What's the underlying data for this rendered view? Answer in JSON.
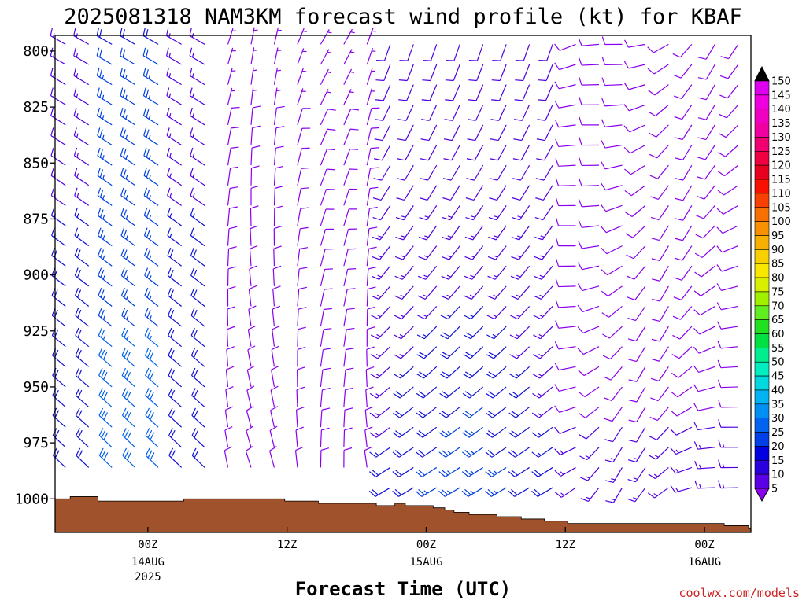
{
  "chart_data": {
    "type": "wind-barb-profile",
    "title": "2025081318 NAM3KM forecast wind profile (kt) for KBAF",
    "xlabel": "Forecast Time (UTC)",
    "credit": "coolwx.com/models",
    "y_axis": {
      "reversed": true,
      "range": [
        1015,
        793
      ],
      "ticks": [
        "800",
        "825",
        "850",
        "875",
        "900",
        "925",
        "950",
        "975",
        "1000"
      ]
    },
    "x_axis": {
      "range_hours": [
        -4,
        26
      ],
      "ticks": [
        {
          "hour": 0,
          "label": "00Z",
          "sub1": "14AUG",
          "sub2": "2025"
        },
        {
          "hour": 6,
          "label": "12Z",
          "sub1": "",
          "sub2": ""
        },
        {
          "hour": 12,
          "label": "00Z",
          "sub1": "15AUG",
          "sub2": ""
        },
        {
          "hour": 18,
          "label": "12Z",
          "sub1": "",
          "sub2": ""
        },
        {
          "hour": 24,
          "label": "00Z",
          "sub1": "16AUG",
          "sub2": ""
        }
      ]
    },
    "colorbar": {
      "levels": [
        "5",
        "10",
        "15",
        "20",
        "25",
        "30",
        "35",
        "40",
        "45",
        "50",
        "55",
        "60",
        "65",
        "70",
        "75",
        "80",
        "85",
        "90",
        "95",
        "100",
        "105",
        "110",
        "115",
        "120",
        "125",
        "130",
        "135",
        "140",
        "145",
        "150"
      ],
      "colors": [
        "#8800ee",
        "#5a00e6",
        "#2a00e0",
        "#0000e0",
        "#0040e8",
        "#0064f0",
        "#0090f4",
        "#00b4f4",
        "#00d8e0",
        "#00eec0",
        "#00ee90",
        "#00e040",
        "#20e020",
        "#60ee20",
        "#a0f000",
        "#d8f000",
        "#f8e800",
        "#f8d000",
        "#f8b000",
        "#f89000",
        "#f87000",
        "#f84000",
        "#f81000",
        "#e80020",
        "#f00040",
        "#f00070",
        "#f000a0",
        "#f000c0",
        "#f000e0",
        "#e000f0"
      ]
    },
    "terrain": {
      "color": "#a0522d",
      "steps": [
        {
          "h": -4.0,
          "p": 1000
        },
        {
          "h": -3.35,
          "p": 999
        },
        {
          "h": -2.15,
          "p": 1001
        },
        {
          "h": -0.85,
          "p": 1001
        },
        {
          "h": 0.7,
          "p": 1001
        },
        {
          "h": 1.55,
          "p": 1000
        },
        {
          "h": 4.5,
          "p": 1000
        },
        {
          "h": 5.9,
          "p": 1001
        },
        {
          "h": 7.35,
          "p": 1002
        },
        {
          "h": 9.85,
          "p": 1003
        },
        {
          "h": 10.65,
          "p": 1002
        },
        {
          "h": 11.1,
          "p": 1003
        },
        {
          "h": 11.85,
          "p": 1003
        },
        {
          "h": 12.3,
          "p": 1004
        },
        {
          "h": 12.8,
          "p": 1005
        },
        {
          "h": 13.2,
          "p": 1006
        },
        {
          "h": 13.85,
          "p": 1007
        },
        {
          "h": 15.05,
          "p": 1008
        },
        {
          "h": 16.1,
          "p": 1009
        },
        {
          "h": 17.1,
          "p": 1010
        },
        {
          "h": 18.1,
          "p": 1011
        },
        {
          "h": 19.8,
          "p": 1011
        },
        {
          "h": 21.8,
          "p": 1011
        },
        {
          "h": 23.85,
          "p": 1011
        },
        {
          "h": 24.85,
          "p": 1012
        },
        {
          "h": 25.9,
          "p": 1013
        }
      ]
    }
  }
}
